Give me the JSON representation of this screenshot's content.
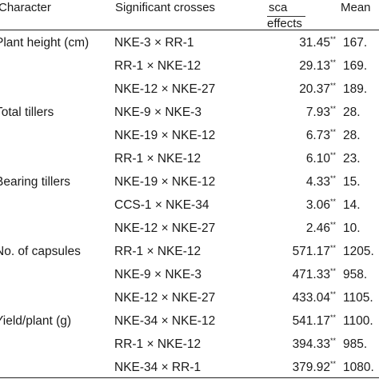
{
  "header": {
    "character": "Character",
    "crosses": "Significant crosses",
    "sca": "sca",
    "effects": "effects",
    "mean": "Mean"
  },
  "rows": [
    {
      "character": "Plant height (cm)",
      "cross": "NKE-3 × RR-1",
      "effect": "31.45",
      "sig": "**",
      "mean": "167."
    },
    {
      "character": "",
      "cross": "RR-1 × NKE-12",
      "effect": "29.13",
      "sig": "**",
      "mean": "169."
    },
    {
      "character": "",
      "cross": "NKE-12 × NKE-27",
      "effect": "20.37",
      "sig": "**",
      "mean": "189."
    },
    {
      "character": "Total tillers",
      "cross": "NKE-9 × NKE-3",
      "effect": "7.93",
      "sig": "**",
      "mean": "28."
    },
    {
      "character": "",
      "cross": "NKE-19 × NKE-12",
      "effect": "6.73",
      "sig": "**",
      "mean": "28."
    },
    {
      "character": "",
      "cross": "RR-1 × NKE-12",
      "effect": "6.10",
      "sig": "**",
      "mean": "23."
    },
    {
      "character": "Bearing tillers",
      "cross": "NKE-19 × NKE-12",
      "effect": "4.33",
      "sig": "**",
      "mean": "15."
    },
    {
      "character": "",
      "cross": "CCS-1 × NKE-34",
      "effect": "3.06",
      "sig": "**",
      "mean": "14."
    },
    {
      "character": "",
      "cross": "NKE-12 × NKE-27",
      "effect": "2.46",
      "sig": "**",
      "mean": "10."
    },
    {
      "character": "No. of capsules",
      "cross": "RR-1 × NKE-12",
      "effect": "571.17",
      "sig": "**",
      "mean": "1205."
    },
    {
      "character": "",
      "cross": "NKE-9 × NKE-3",
      "effect": "471.33",
      "sig": "**",
      "mean": "958."
    },
    {
      "character": "",
      "cross": "NKE-12 × NKE-27",
      "effect": "433.04",
      "sig": "**",
      "mean": "1105."
    },
    {
      "character": "Yield/plant (g)",
      "cross": "NKE-34 × NKE-12",
      "effect": "541.17",
      "sig": "**",
      "mean": "1100."
    },
    {
      "character": "",
      "cross": "RR-1 × NKE-12",
      "effect": "394.33",
      "sig": "**",
      "mean": "985."
    },
    {
      "character": "",
      "cross": "NKE-34 × RR-1",
      "effect": "379.92",
      "sig": "**",
      "mean": "1080."
    }
  ]
}
